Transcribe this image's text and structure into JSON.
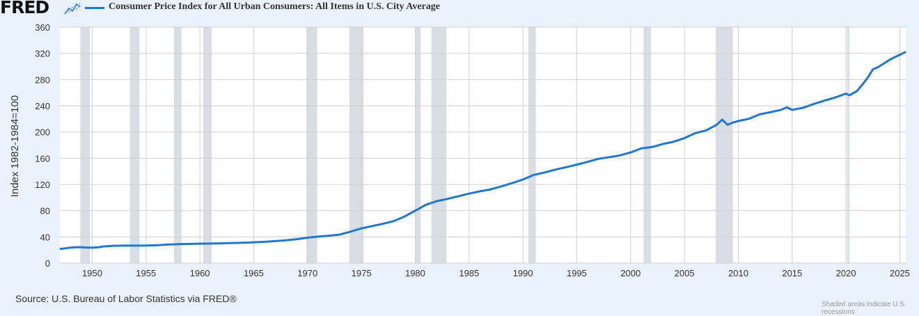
{
  "header": {
    "logo_text": "FRED",
    "logo_graph_icon": "line-graph-icon"
  },
  "colors": {
    "series": "#1f77d4",
    "recession": "#d9dee5",
    "grid": "#d0d0d0",
    "background": "#e9f1fa",
    "plot": "#ffffff"
  },
  "chart_data": {
    "type": "line",
    "title": "",
    "ylabel": "Index 1982-1984=100",
    "xlabel": "",
    "xlim": [
      1947.0,
      2025.55
    ],
    "ylim": [
      0,
      360
    ],
    "yticks": [
      0,
      40,
      80,
      120,
      160,
      200,
      240,
      280,
      320,
      360
    ],
    "xticks": [
      1950,
      1955,
      1960,
      1965,
      1970,
      1975,
      1980,
      1985,
      1990,
      1995,
      2000,
      2005,
      2010,
      2015,
      2020,
      2025
    ],
    "grid": true,
    "legend_position": "top-left",
    "recessions": [
      [
        1948.9,
        1949.8
      ],
      [
        1953.5,
        1954.4
      ],
      [
        1957.6,
        1958.3
      ],
      [
        1960.3,
        1961.1
      ],
      [
        1969.9,
        1970.9
      ],
      [
        1973.9,
        1975.2
      ],
      [
        1980.0,
        1980.5
      ],
      [
        1981.5,
        1982.9
      ],
      [
        1990.5,
        1991.2
      ],
      [
        2001.2,
        2001.9
      ],
      [
        2007.9,
        2009.5
      ],
      [
        2020.1,
        2020.3
      ]
    ],
    "series": [
      {
        "name": "Consumer Price Index for All Urban Consumers: All Items in U.S. City Average",
        "points": [
          [
            1947.0,
            21.5
          ],
          [
            1948.0,
            23.7
          ],
          [
            1948.7,
            24.4
          ],
          [
            1949.5,
            23.8
          ],
          [
            1950.0,
            23.5
          ],
          [
            1950.6,
            24.1
          ],
          [
            1951.0,
            25.4
          ],
          [
            1952.0,
            26.4
          ],
          [
            1953.0,
            26.7
          ],
          [
            1955.0,
            26.8
          ],
          [
            1956.0,
            27.2
          ],
          [
            1957.0,
            28.2
          ],
          [
            1958.0,
            28.9
          ],
          [
            1960.0,
            29.6
          ],
          [
            1962.0,
            30.2
          ],
          [
            1964.0,
            31.0
          ],
          [
            1966.0,
            32.5
          ],
          [
            1968.0,
            34.8
          ],
          [
            1969.0,
            36.5
          ],
          [
            1970.0,
            38.8
          ],
          [
            1971.0,
            40.5
          ],
          [
            1972.0,
            41.8
          ],
          [
            1973.0,
            43.5
          ],
          [
            1974.0,
            48.0
          ],
          [
            1975.0,
            53.0
          ],
          [
            1976.0,
            56.5
          ],
          [
            1977.0,
            60.0
          ],
          [
            1978.0,
            64.0
          ],
          [
            1979.0,
            71.0
          ],
          [
            1980.0,
            80.0
          ],
          [
            1981.0,
            89.0
          ],
          [
            1982.0,
            94.5
          ],
          [
            1983.0,
            98.0
          ],
          [
            1984.0,
            102.0
          ],
          [
            1985.0,
            106.0
          ],
          [
            1986.0,
            109.5
          ],
          [
            1987.0,
            112.5
          ],
          [
            1988.0,
            117.0
          ],
          [
            1989.0,
            122.0
          ],
          [
            1990.0,
            127.5
          ],
          [
            1991.0,
            134.5
          ],
          [
            1992.0,
            138.3
          ],
          [
            1993.0,
            142.6
          ],
          [
            1994.0,
            146.2
          ],
          [
            1995.0,
            150.3
          ],
          [
            1996.0,
            154.4
          ],
          [
            1997.0,
            159.1
          ],
          [
            1998.0,
            161.6
          ],
          [
            1999.0,
            164.3
          ],
          [
            2000.0,
            168.8
          ],
          [
            2001.0,
            175.1
          ],
          [
            2002.0,
            177.1
          ],
          [
            2003.0,
            181.7
          ],
          [
            2004.0,
            185.2
          ],
          [
            2005.0,
            190.7
          ],
          [
            2006.0,
            198.3
          ],
          [
            2007.0,
            202.4
          ],
          [
            2008.0,
            211.1
          ],
          [
            2008.5,
            219.0
          ],
          [
            2009.0,
            211.1
          ],
          [
            2009.5,
            214.5
          ],
          [
            2010.0,
            216.7
          ],
          [
            2011.0,
            220.2
          ],
          [
            2012.0,
            227.0
          ],
          [
            2013.0,
            230.3
          ],
          [
            2014.0,
            233.9
          ],
          [
            2014.5,
            237.8
          ],
          [
            2015.0,
            233.7
          ],
          [
            2016.0,
            236.9
          ],
          [
            2017.0,
            242.8
          ],
          [
            2018.0,
            247.9
          ],
          [
            2019.0,
            252.6
          ],
          [
            2020.0,
            258.7
          ],
          [
            2020.3,
            256.0
          ],
          [
            2021.0,
            262.2
          ],
          [
            2021.5,
            272.0
          ],
          [
            2022.0,
            282.6
          ],
          [
            2022.5,
            295.5
          ],
          [
            2023.0,
            299.2
          ],
          [
            2024.0,
            309.7
          ],
          [
            2024.5,
            314.0
          ],
          [
            2025.0,
            317.7
          ],
          [
            2025.55,
            322.5
          ]
        ]
      }
    ]
  },
  "footer": {
    "source": "Source: U.S. Bureau of Labor Statistics via FRED®",
    "note": "Shaded areas indicate U.S. recessions"
  }
}
